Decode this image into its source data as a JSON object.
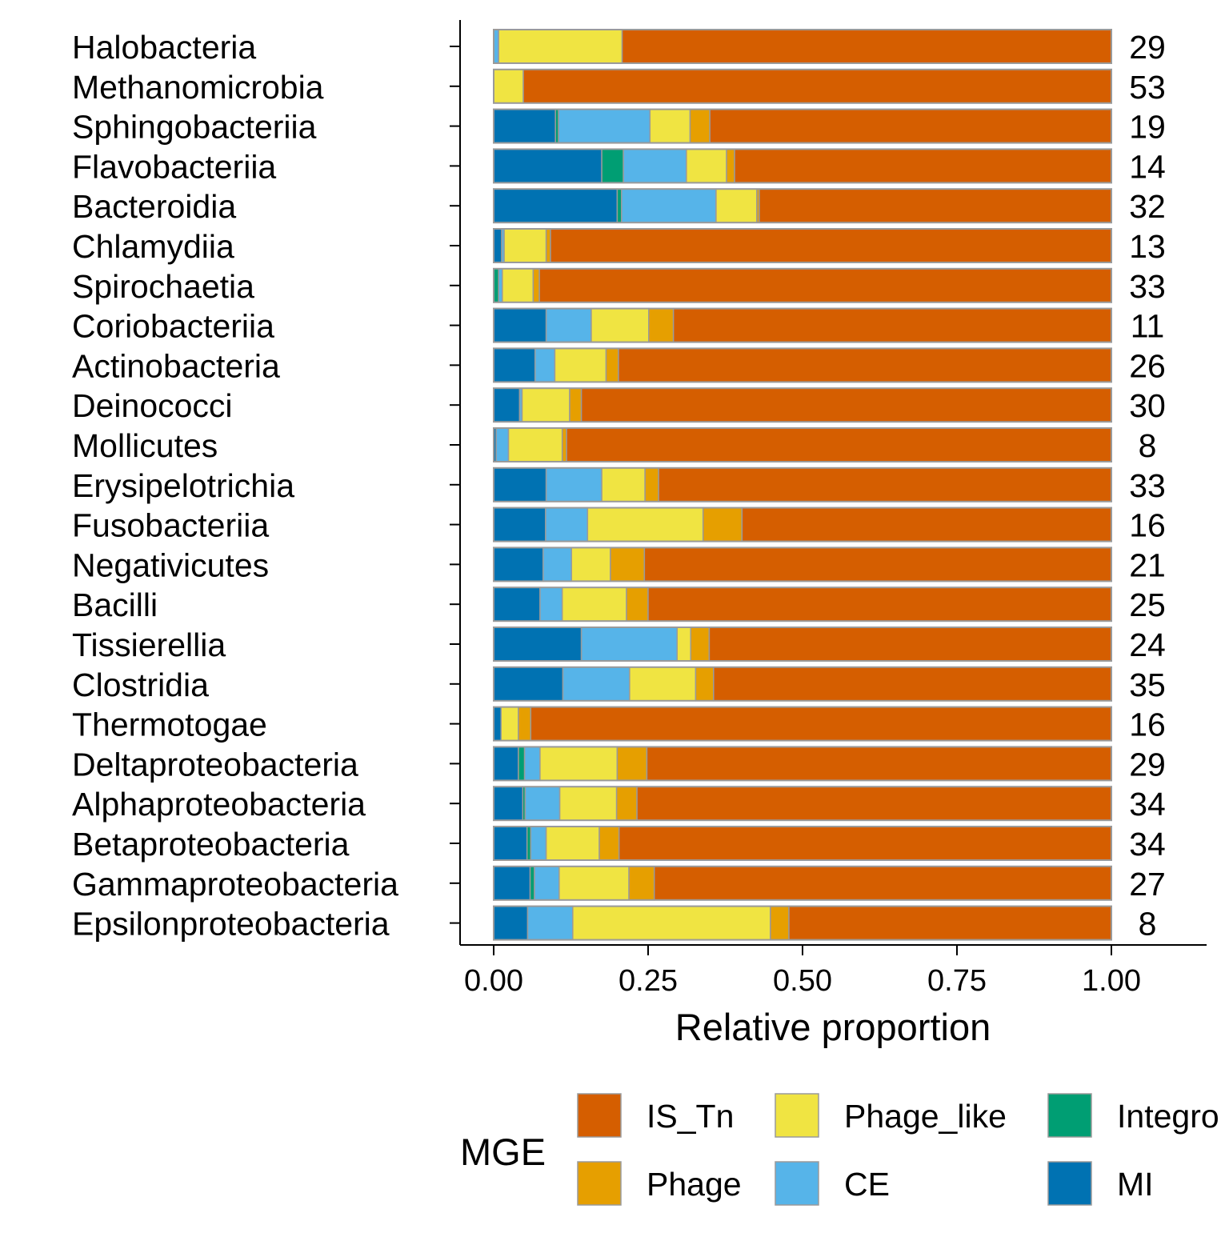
{
  "chart_data": {
    "type": "bar",
    "orientation": "horizontal",
    "stacked": true,
    "xlabel": "Relative proportion",
    "xlim": [
      0,
      1
    ],
    "xticks": [
      "0.00",
      "0.25",
      "0.50",
      "0.75",
      "1.00"
    ],
    "grid": false,
    "legend": {
      "title": "MGE",
      "placement": "bottom",
      "entries": [
        "IS_Tn",
        "Phage",
        "Phage_like",
        "CE",
        "Integro",
        "MI"
      ]
    },
    "stack_order_left_to_right": [
      "MI",
      "Integron",
      "CE",
      "Phage_like",
      "Phage",
      "IS_Tn"
    ],
    "colors": {
      "MI": "#0072B2",
      "Integron": "#009E73",
      "CE": "#56B4E9",
      "Phage_like": "#F0E442",
      "Phage": "#E69F00",
      "IS_Tn": "#D55E00",
      "bar_outline": "#9A9A9A"
    },
    "categories": [
      {
        "name": "Halobacteria",
        "count": "29",
        "MI": 0.0,
        "Integron": 0.0,
        "CE": 0.008,
        "Phage_like": 0.2,
        "Phage": 0.0,
        "IS_Tn": 0.792
      },
      {
        "name": "Methanomicrobia",
        "count": "53",
        "MI": 0.0,
        "Integron": 0.0,
        "CE": 0.0,
        "Phage_like": 0.048,
        "Phage": 0.0,
        "IS_Tn": 0.952
      },
      {
        "name": "Sphingobacteriia",
        "count": "19",
        "MI": 0.1,
        "Integron": 0.005,
        "CE": 0.148,
        "Phage_like": 0.065,
        "Phage": 0.032,
        "IS_Tn": 0.65
      },
      {
        "name": "Flavobacteriia",
        "count": "14",
        "MI": 0.175,
        "Integron": 0.035,
        "CE": 0.102,
        "Phage_like": 0.065,
        "Phage": 0.013,
        "IS_Tn": 0.61
      },
      {
        "name": "Bacteroidia",
        "count": "32",
        "MI": 0.2,
        "Integron": 0.007,
        "CE": 0.153,
        "Phage_like": 0.066,
        "Phage": 0.004,
        "IS_Tn": 0.57
      },
      {
        "name": "Chlamydiia",
        "count": "13",
        "MI": 0.013,
        "Integron": 0.0,
        "CE": 0.004,
        "Phage_like": 0.068,
        "Phage": 0.007,
        "IS_Tn": 0.908
      },
      {
        "name": "Spirochaetia",
        "count": "33",
        "MI": 0.0,
        "Integron": 0.008,
        "CE": 0.006,
        "Phage_like": 0.05,
        "Phage": 0.01,
        "IS_Tn": 0.926
      },
      {
        "name": "Coriobacteriia",
        "count": "11",
        "MI": 0.085,
        "Integron": 0.0,
        "CE": 0.073,
        "Phage_like": 0.093,
        "Phage": 0.04,
        "IS_Tn": 0.709
      },
      {
        "name": "Actinobacteria",
        "count": "26",
        "MI": 0.067,
        "Integron": 0.0,
        "CE": 0.032,
        "Phage_like": 0.083,
        "Phage": 0.02,
        "IS_Tn": 0.798
      },
      {
        "name": "Deinococci",
        "count": "30",
        "MI": 0.042,
        "Integron": 0.0,
        "CE": 0.004,
        "Phage_like": 0.077,
        "Phage": 0.019,
        "IS_Tn": 0.858
      },
      {
        "name": "Mollicutes",
        "count": "8",
        "MI": 0.004,
        "Integron": 0.0,
        "CE": 0.02,
        "Phage_like": 0.087,
        "Phage": 0.007,
        "IS_Tn": 0.882
      },
      {
        "name": "Erysipelotrichia",
        "count": "33",
        "MI": 0.085,
        "Integron": 0.0,
        "CE": 0.09,
        "Phage_like": 0.07,
        "Phage": 0.022,
        "IS_Tn": 0.733
      },
      {
        "name": "Fusobacteriia",
        "count": "16",
        "MI": 0.084,
        "Integron": 0.0,
        "CE": 0.068,
        "Phage_like": 0.187,
        "Phage": 0.063,
        "IS_Tn": 0.598
      },
      {
        "name": "Negativicutes",
        "count": "21",
        "MI": 0.08,
        "Integron": 0.0,
        "CE": 0.046,
        "Phage_like": 0.063,
        "Phage": 0.055,
        "IS_Tn": 0.756
      },
      {
        "name": "Bacilli",
        "count": "25",
        "MI": 0.075,
        "Integron": 0.0,
        "CE": 0.036,
        "Phage_like": 0.104,
        "Phage": 0.035,
        "IS_Tn": 0.75
      },
      {
        "name": "Tissierellia",
        "count": "24",
        "MI": 0.142,
        "Integron": 0.0,
        "CE": 0.155,
        "Phage_like": 0.022,
        "Phage": 0.03,
        "IS_Tn": 0.651
      },
      {
        "name": "Clostridia",
        "count": "35",
        "MI": 0.112,
        "Integron": 0.0,
        "CE": 0.108,
        "Phage_like": 0.107,
        "Phage": 0.029,
        "IS_Tn": 0.644
      },
      {
        "name": "Thermotogae",
        "count": "16",
        "MI": 0.012,
        "Integron": 0.0,
        "CE": 0.0,
        "Phage_like": 0.028,
        "Phage": 0.02,
        "IS_Tn": 0.94
      },
      {
        "name": "Deltaproteobacteria",
        "count": "29",
        "MI": 0.04,
        "Integron": 0.01,
        "CE": 0.025,
        "Phage_like": 0.125,
        "Phage": 0.048,
        "IS_Tn": 0.752
      },
      {
        "name": "Alphaproteobacteria",
        "count": "34",
        "MI": 0.047,
        "Integron": 0.004,
        "CE": 0.056,
        "Phage_like": 0.092,
        "Phage": 0.033,
        "IS_Tn": 0.768
      },
      {
        "name": "Betaproteobacteria",
        "count": "34",
        "MI": 0.054,
        "Integron": 0.006,
        "CE": 0.025,
        "Phage_like": 0.086,
        "Phage": 0.032,
        "IS_Tn": 0.797
      },
      {
        "name": "Gammaproteobacteria",
        "count": "27",
        "MI": 0.059,
        "Integron": 0.007,
        "CE": 0.04,
        "Phage_like": 0.113,
        "Phage": 0.041,
        "IS_Tn": 0.74
      },
      {
        "name": "Epsilonproteobacteria",
        "count": "8",
        "MI": 0.055,
        "Integron": 0.0,
        "CE": 0.073,
        "Phage_like": 0.32,
        "Phage": 0.03,
        "IS_Tn": 0.522
      }
    ]
  }
}
